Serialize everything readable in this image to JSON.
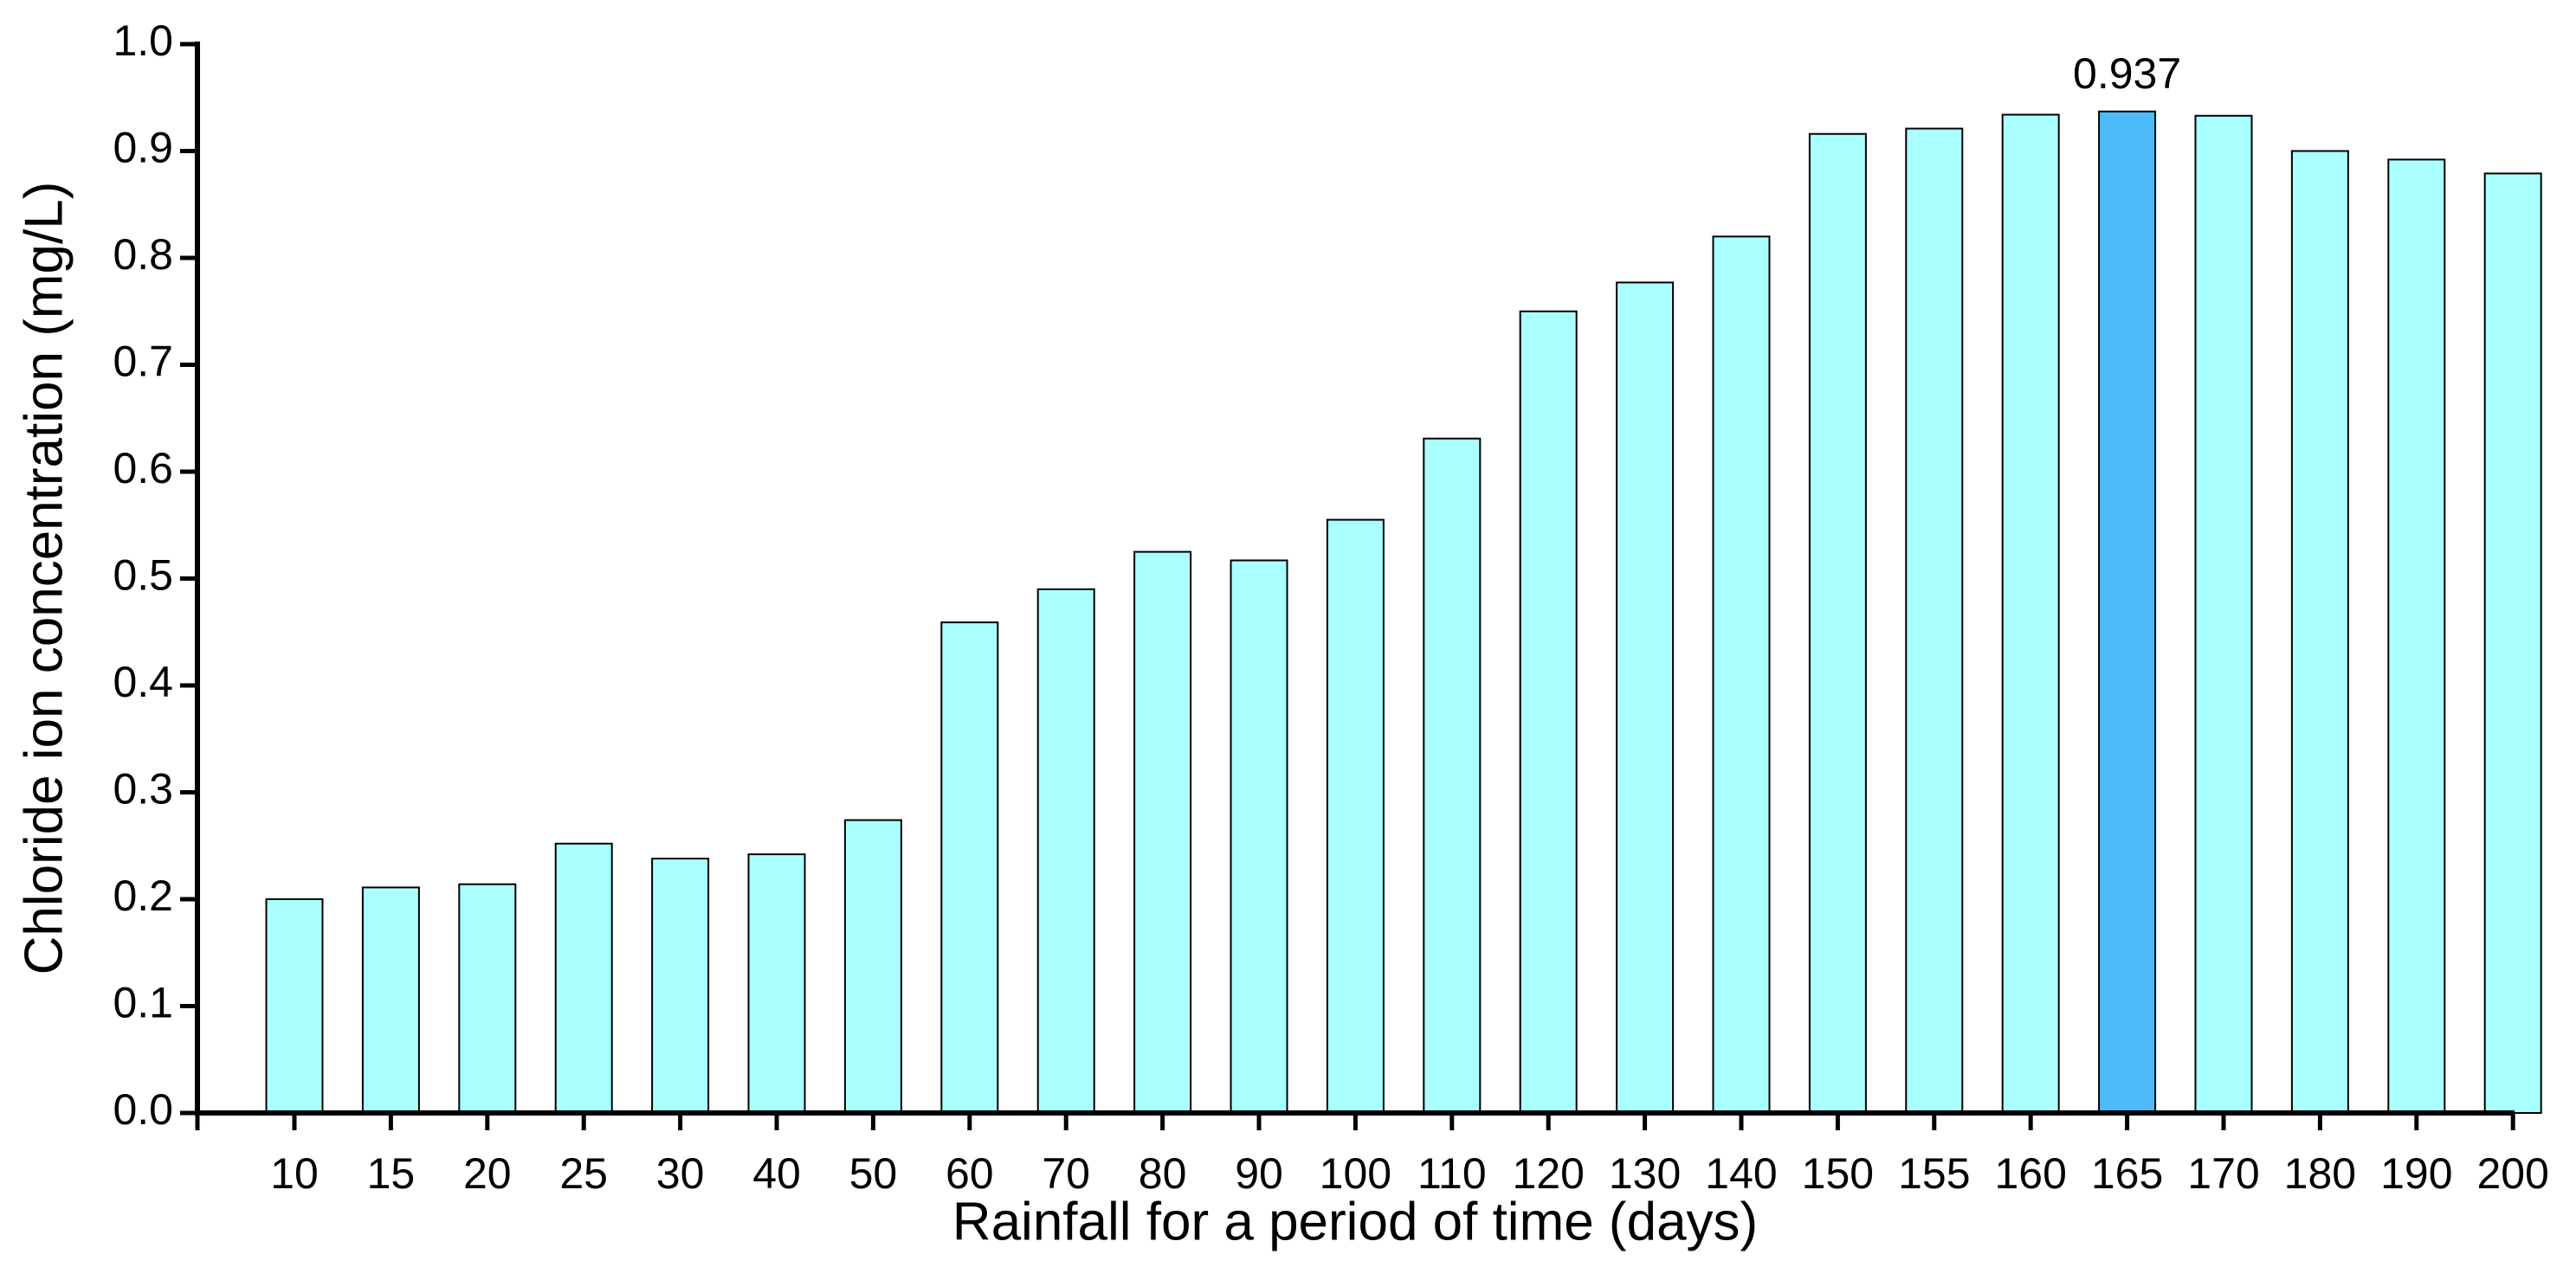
{
  "chart_data": {
    "type": "bar",
    "xlabel": "Rainfall for a period of time (days)",
    "ylabel": "Chloride ion concentration (mg/L)",
    "categories": [
      "10",
      "15",
      "20",
      "25",
      "30",
      "40",
      "50",
      "60",
      "70",
      "80",
      "90",
      "100",
      "110",
      "120",
      "130",
      "140",
      "150",
      "155",
      "160",
      "165",
      "170",
      "180",
      "190",
      "200"
    ],
    "values": [
      0.2,
      0.211,
      0.214,
      0.252,
      0.238,
      0.242,
      0.274,
      0.459,
      0.49,
      0.525,
      0.517,
      0.555,
      0.631,
      0.75,
      0.777,
      0.82,
      0.916,
      0.921,
      0.934,
      0.937,
      0.933,
      0.9,
      0.892,
      0.879
    ],
    "value_labels": [
      null,
      null,
      null,
      null,
      null,
      null,
      null,
      null,
      null,
      null,
      null,
      null,
      null,
      null,
      null,
      null,
      null,
      null,
      null,
      "0.937",
      null,
      null,
      null,
      null
    ],
    "colors": [
      "#aaffff",
      "#aaffff",
      "#aaffff",
      "#aaffff",
      "#aaffff",
      "#aaffff",
      "#aaffff",
      "#aaffff",
      "#aaffff",
      "#aaffff",
      "#aaffff",
      "#aaffff",
      "#aaffff",
      "#aaffff",
      "#aaffff",
      "#aaffff",
      "#aaffff",
      "#aaffff",
      "#aaffff",
      "#4dbbf9",
      "#aaffff",
      "#aaffff",
      "#aaffff",
      "#aaffff"
    ],
    "ylim": [
      0,
      1
    ],
    "yticks": [
      {
        "value": 0,
        "label": "0.0"
      },
      0.1,
      0.2,
      0.3,
      0.4,
      0.5,
      0.6,
      0.7,
      0.8,
      0.9,
      {
        "value": 1,
        "label": "1.0"
      }
    ],
    "grid": false
  }
}
